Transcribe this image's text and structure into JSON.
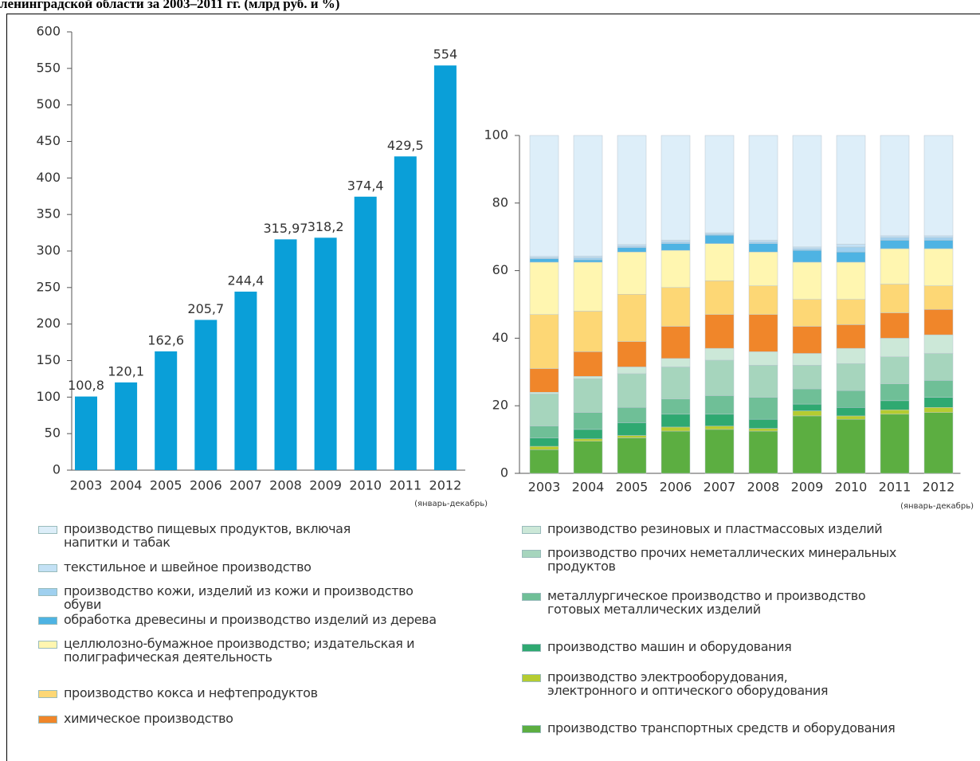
{
  "title": "ленинградской области за 2003–2011 гг. (млрд руб. и %)",
  "chart_data": [
    {
      "type": "bar",
      "categories": [
        "2003",
        "2004",
        "2005",
        "2006",
        "2007",
        "2008",
        "2009",
        "2010",
        "2011",
        "2012"
      ],
      "values": [
        100.8,
        120.1,
        162.6,
        205.7,
        244.4,
        315.97,
        318.2,
        374.4,
        429.5,
        554
      ],
      "value_labels": [
        "100,8",
        "120,1",
        "162,6",
        "205,7",
        "244,4",
        "315,97",
        "318,2",
        "374,4",
        "429,5",
        "554"
      ],
      "color": "#0a9fd8",
      "ylim": [
        0,
        600
      ],
      "yticks": [
        0,
        50,
        100,
        150,
        200,
        250,
        300,
        350,
        400,
        450,
        500,
        550,
        600
      ],
      "annotation": "(январь-декабрь)"
    },
    {
      "type": "stacked_bar",
      "categories": [
        "2003",
        "2004",
        "2005",
        "2006",
        "2007",
        "2008",
        "2009",
        "2010",
        "2011",
        "2012"
      ],
      "ylim": [
        0,
        100
      ],
      "yticks": [
        0,
        20,
        40,
        60,
        80,
        100
      ],
      "annotation": "(январь-декабрь)",
      "series": [
        {
          "name": "производство пищевых продуктов, включая напитки и табак",
          "color": "#ddeef9",
          "values": [
            35.8,
            35.7,
            32.3,
            31,
            28.8,
            31,
            33,
            32.2,
            29.7,
            29.7
          ]
        },
        {
          "name": "текстильное и швейное производство",
          "color": "#c3e1f5",
          "values": [
            0.4,
            0.5,
            0.5,
            0.5,
            0.4,
            0.5,
            0.5,
            0.8,
            0.5,
            0.5
          ]
        },
        {
          "name": "производство кожи, изделий из кожи и производство обуви",
          "color": "#9fd0ef",
          "values": [
            0.3,
            0.6,
            0.4,
            0.5,
            0.3,
            0.5,
            0.5,
            1.5,
            0.8,
            0.8
          ]
        },
        {
          "name": "обработка древесины и производство изделий из дерева",
          "color": "#4eb3e3",
          "values": [
            1,
            0.7,
            1.3,
            2,
            2.5,
            2.5,
            3.5,
            3,
            2.5,
            2.5
          ]
        },
        {
          "name": "целлюлозно-бумажное производство; издательская и полиграфическая деятельность",
          "color": "#fff6b0",
          "values": [
            15.5,
            14.5,
            12.5,
            11,
            11,
            10,
            11,
            11,
            10.5,
            11
          ]
        },
        {
          "name": "производство кокса и нефтепродуктов",
          "color": "#fdd775",
          "values": [
            16,
            12,
            14,
            11.5,
            10,
            8.5,
            8,
            7.5,
            8.5,
            7
          ]
        },
        {
          "name": "химическое производство",
          "color": "#f0862a",
          "values": [
            7,
            7.3,
            7.5,
            9.5,
            10,
            11,
            8,
            7,
            7.5,
            7.5
          ]
        },
        {
          "name": "производство резиновых и пластмассовых изделий",
          "color": "#cce8d8",
          "values": [
            0.5,
            0.7,
            2,
            2.5,
            3.5,
            4,
            3.5,
            4.5,
            5.5,
            5.5
          ]
        },
        {
          "name": "производство прочих неметаллических минеральных продуктов",
          "color": "#a6d5bd",
          "values": [
            9.5,
            10,
            10,
            9.5,
            10.5,
            9.5,
            7,
            8,
            8,
            8
          ]
        },
        {
          "name": "металлургическое производство и производство готовых металлических изделий",
          "color": "#6fbf97",
          "values": [
            3.5,
            5,
            4.5,
            4.5,
            5.5,
            6.5,
            4.5,
            5,
            5,
            5
          ]
        },
        {
          "name": "производство машин и оборудования",
          "color": "#2fa971",
          "values": [
            2.5,
            2.8,
            3.8,
            3.8,
            3.5,
            2.7,
            2,
            2.5,
            2.7,
            3
          ]
        },
        {
          "name": "производство электрооборудования, электронного и оптического оборудования",
          "color": "#b5cc31",
          "values": [
            1,
            0.7,
            0.7,
            1.2,
            1,
            0.8,
            1.5,
            1,
            1.3,
            1.5
          ]
        },
        {
          "name": "производство транспортных средств и оборудования",
          "color": "#5cae41",
          "values": [
            7,
            9.5,
            10.5,
            12.5,
            13,
            12.5,
            17,
            16,
            17.5,
            18
          ]
        }
      ]
    }
  ]
}
